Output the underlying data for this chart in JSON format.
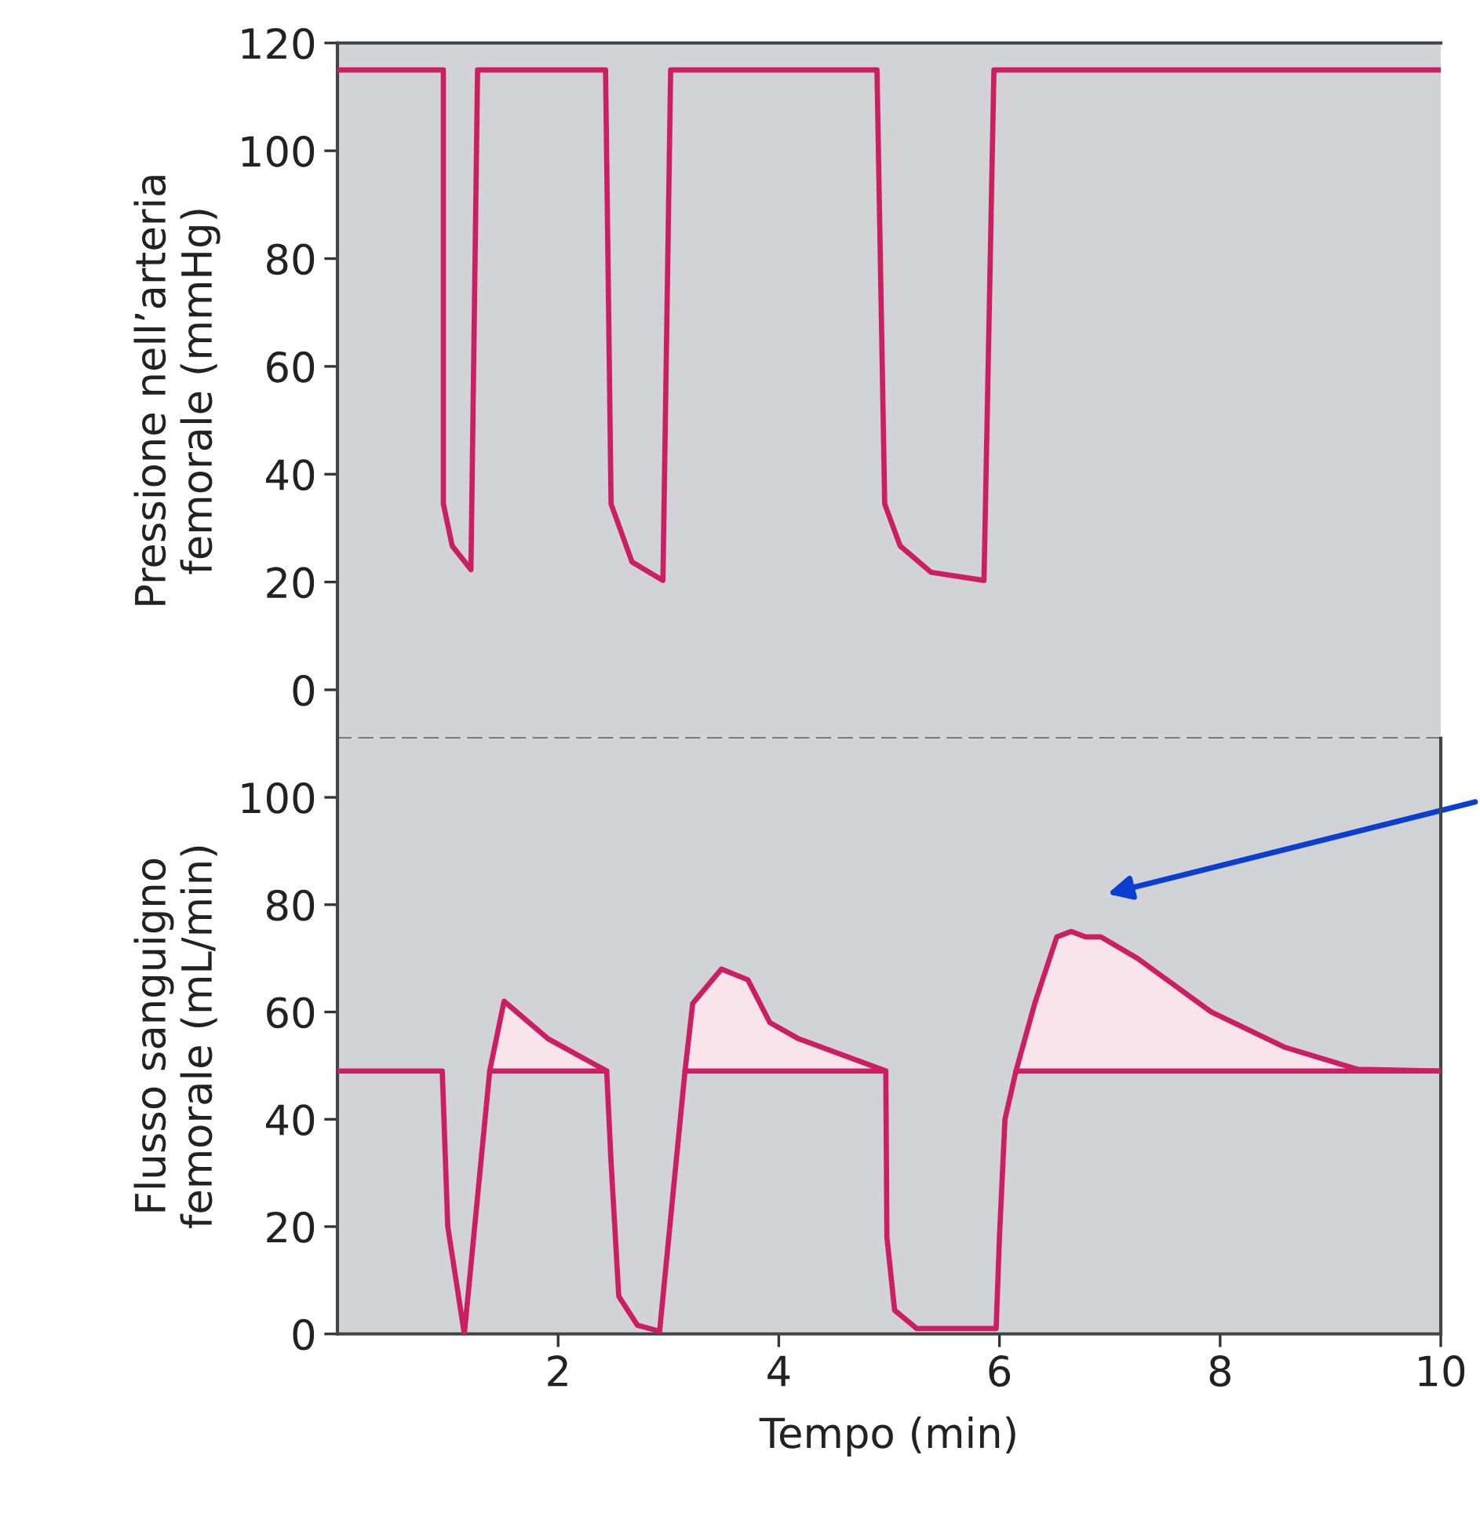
{
  "chart_data": [
    {
      "type": "line",
      "ylabel": "Pressione nell’arteria\nfemorale (mmHg)",
      "xlim": [
        0,
        10
      ],
      "ylim": [
        -9,
        120
      ],
      "yticks": [
        0,
        20,
        40,
        60,
        80,
        100,
        120
      ],
      "tick_labels": "y",
      "grid": false,
      "legend": false,
      "series": [
        {
          "color": "#cc1f63",
          "x": [
            0,
            0.96,
            0.96,
            1.04,
            1.21,
            1.27,
            2.43,
            2.48,
            2.67,
            2.95,
            3.02,
            4.89,
            4.96,
            5.1,
            5.38,
            5.86,
            5.95,
            10
          ],
          "values": [
            115,
            115,
            34.5,
            26.7,
            22.3,
            115,
            115,
            34.5,
            23.7,
            20.3,
            115,
            115,
            34.5,
            26.7,
            21.8,
            20.3,
            115,
            115
          ]
        }
      ]
    },
    {
      "type": "line",
      "ylabel": "Flusso sanguigno\nfemorale (mL/min)",
      "xlabel": "Tempo (min)",
      "xlim": [
        0,
        10
      ],
      "ylim": [
        0,
        111
      ],
      "yticks": [
        0,
        20,
        40,
        60,
        80,
        100
      ],
      "xticks": [
        2,
        4,
        6,
        8,
        10
      ],
      "grid": false,
      "legend": false,
      "series": [
        {
          "color": "#cc1f63",
          "x": [
            0,
            0.95,
            1.0,
            1.15,
            1.38,
            1.51,
            1.91,
            2.44,
            2.48,
            2.55,
            2.72,
            2.92,
            3.15,
            3.22,
            3.48,
            3.72,
            3.92,
            4.18,
            4.97,
            4.98,
            5.05,
            5.25,
            5.97,
            6.0,
            6.05,
            6.15,
            6.32,
            6.52,
            6.65,
            6.78,
            6.92,
            7.25,
            7.92,
            8.59,
            9.25,
            10
          ],
          "values": [
            49,
            49,
            20,
            0,
            49,
            62,
            55,
            49,
            32,
            7,
            1.6,
            0.5,
            49,
            61.6,
            68,
            66,
            58,
            55,
            49,
            18,
            4.4,
            1,
            1,
            18,
            40,
            49,
            61.6,
            74,
            75,
            74,
            74,
            70,
            60,
            53.4,
            49.3,
            49
          ],
          "lower": [
            null,
            null,
            null,
            null,
            49,
            49,
            49,
            49,
            null,
            null,
            null,
            null,
            49,
            49,
            49,
            49,
            49,
            49,
            49,
            null,
            null,
            null,
            null,
            null,
            null,
            49,
            49,
            49,
            49,
            49,
            49,
            49,
            49,
            49,
            49,
            49
          ],
          "upper": [
            null,
            null,
            null,
            null,
            49,
            62,
            55,
            49,
            null,
            null,
            null,
            null,
            49,
            61.6,
            68,
            66,
            58,
            55,
            49,
            null,
            null,
            null,
            null,
            null,
            null,
            49,
            61.6,
            74,
            75,
            74,
            74,
            70,
            60,
            53.4,
            49.3,
            49
          ]
        },
        {
          "color": "#cc1f63",
          "x": [
            1.38,
            2.44,
            2.8,
            3.15,
            4.97,
            5.5,
            6.15,
            10
          ],
          "values": [
            49,
            49,
            null,
            49,
            49,
            null,
            49,
            49
          ]
        }
      ]
    }
  ]
}
